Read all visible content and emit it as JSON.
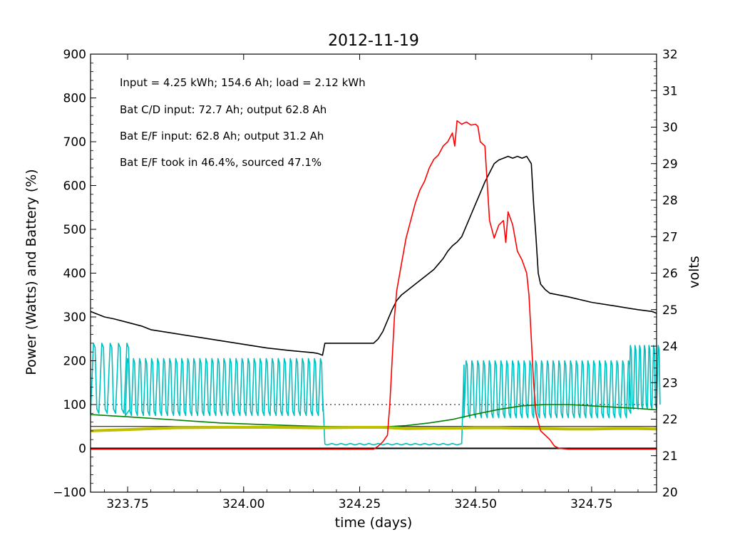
{
  "chart_data": {
    "type": "line",
    "title": "2012-11-19",
    "xlabel": "time (days)",
    "ylabel": "Power (Watts) and Battery (%)",
    "y2label": "volts",
    "xlim": [
      323.67,
      324.89
    ],
    "ylim": [
      -100,
      900
    ],
    "y2lim": [
      20,
      32
    ],
    "xticks": [
      323.75,
      324.0,
      324.25,
      324.5,
      324.75
    ],
    "xtick_labels": [
      "323.75",
      "324.00",
      "324.25",
      "324.50",
      "324.75"
    ],
    "yticks": [
      -100,
      0,
      100,
      200,
      300,
      400,
      500,
      600,
      700,
      800,
      900
    ],
    "ytick_labels": [
      "−100",
      "0",
      "100",
      "200",
      "300",
      "400",
      "500",
      "600",
      "700",
      "800",
      "900"
    ],
    "y2ticks": [
      20,
      21,
      22,
      23,
      24,
      25,
      26,
      27,
      28,
      29,
      30,
      31,
      32
    ],
    "y2tick_labels": [
      "20",
      "21",
      "22",
      "23",
      "24",
      "25",
      "26",
      "27",
      "28",
      "29",
      "30",
      "31",
      "32"
    ],
    "grid": false,
    "annotations": [
      "Input = 4.25 kWh; 154.6 Ah; load = 2.12 kWh",
      "Bat C/D input: 72.7 Ah; output 62.8 Ah",
      "Bat E/F input: 62.8 Ah; output 31.2 Ah",
      "Bat E/F took in 46.4%, sourced 47.1%"
    ],
    "reference_lines": [
      {
        "axis": "y",
        "value": 100,
        "style": "dotted",
        "color": "#000000"
      },
      {
        "axis": "y",
        "value": 50,
        "style": "solid",
        "color": "#000000"
      },
      {
        "axis": "y",
        "value": 0,
        "style": "solid",
        "color": "#000000"
      }
    ],
    "series": [
      {
        "color": "#ff0000",
        "axis": "left",
        "points": [
          [
            323.67,
            -2
          ],
          [
            324.25,
            -2
          ],
          [
            324.28,
            -2
          ],
          [
            324.29,
            5
          ],
          [
            324.3,
            15
          ],
          [
            324.31,
            30
          ],
          [
            324.315,
            100
          ],
          [
            324.32,
            200
          ],
          [
            324.325,
            300
          ],
          [
            324.33,
            360
          ],
          [
            324.34,
            420
          ],
          [
            324.35,
            480
          ],
          [
            324.36,
            520
          ],
          [
            324.37,
            560
          ],
          [
            324.38,
            590
          ],
          [
            324.39,
            610
          ],
          [
            324.4,
            640
          ],
          [
            324.41,
            660
          ],
          [
            324.42,
            670
          ],
          [
            324.43,
            690
          ],
          [
            324.44,
            700
          ],
          [
            324.45,
            720
          ],
          [
            324.455,
            690
          ],
          [
            324.46,
            748
          ],
          [
            324.47,
            740
          ],
          [
            324.48,
            745
          ],
          [
            324.49,
            738
          ],
          [
            324.5,
            740
          ],
          [
            324.505,
            735
          ],
          [
            324.51,
            700
          ],
          [
            324.52,
            690
          ],
          [
            324.53,
            520
          ],
          [
            324.54,
            480
          ],
          [
            324.55,
            510
          ],
          [
            324.56,
            520
          ],
          [
            324.565,
            470
          ],
          [
            324.57,
            540
          ],
          [
            324.58,
            510
          ],
          [
            324.59,
            450
          ],
          [
            324.6,
            430
          ],
          [
            324.61,
            400
          ],
          [
            324.615,
            350
          ],
          [
            324.62,
            250
          ],
          [
            324.625,
            150
          ],
          [
            324.63,
            80
          ],
          [
            324.64,
            40
          ],
          [
            324.65,
            30
          ],
          [
            324.66,
            20
          ],
          [
            324.67,
            5
          ],
          [
            324.68,
            0
          ],
          [
            324.7,
            -2
          ],
          [
            324.89,
            -2
          ]
        ]
      },
      {
        "color": "#000000",
        "axis": "right",
        "points": [
          [
            323.67,
            24.95
          ],
          [
            323.68,
            24.9
          ],
          [
            323.69,
            24.85
          ],
          [
            323.7,
            24.8
          ],
          [
            323.72,
            24.75
          ],
          [
            323.75,
            24.65
          ],
          [
            323.78,
            24.55
          ],
          [
            323.8,
            24.45
          ],
          [
            323.85,
            24.35
          ],
          [
            323.9,
            24.25
          ],
          [
            323.95,
            24.15
          ],
          [
            324.0,
            24.05
          ],
          [
            324.05,
            23.95
          ],
          [
            324.1,
            23.88
          ],
          [
            324.15,
            23.82
          ],
          [
            324.16,
            23.8
          ],
          [
            324.17,
            23.75
          ],
          [
            324.175,
            24.08
          ],
          [
            324.2,
            24.08
          ],
          [
            324.25,
            24.08
          ],
          [
            324.28,
            24.08
          ],
          [
            324.29,
            24.2
          ],
          [
            324.3,
            24.4
          ],
          [
            324.31,
            24.7
          ],
          [
            324.32,
            25.0
          ],
          [
            324.33,
            25.25
          ],
          [
            324.34,
            25.4
          ],
          [
            324.35,
            25.5
          ],
          [
            324.36,
            25.6
          ],
          [
            324.37,
            25.7
          ],
          [
            324.38,
            25.8
          ],
          [
            324.39,
            25.9
          ],
          [
            324.4,
            26.0
          ],
          [
            324.41,
            26.1
          ],
          [
            324.42,
            26.25
          ],
          [
            324.43,
            26.4
          ],
          [
            324.44,
            26.6
          ],
          [
            324.45,
            26.75
          ],
          [
            324.46,
            26.85
          ],
          [
            324.47,
            27.0
          ],
          [
            324.48,
            27.3
          ],
          [
            324.49,
            27.6
          ],
          [
            324.5,
            27.9
          ],
          [
            324.51,
            28.2
          ],
          [
            324.52,
            28.5
          ],
          [
            324.53,
            28.75
          ],
          [
            324.54,
            29.0
          ],
          [
            324.55,
            29.1
          ],
          [
            324.56,
            29.15
          ],
          [
            324.57,
            29.2
          ],
          [
            324.58,
            29.15
          ],
          [
            324.59,
            29.2
          ],
          [
            324.6,
            29.15
          ],
          [
            324.61,
            29.2
          ],
          [
            324.62,
            29.0
          ],
          [
            324.625,
            27.9
          ],
          [
            324.63,
            27.0
          ],
          [
            324.635,
            26.0
          ],
          [
            324.64,
            25.7
          ],
          [
            324.65,
            25.55
          ],
          [
            324.66,
            25.45
          ],
          [
            324.7,
            25.35
          ],
          [
            324.75,
            25.2
          ],
          [
            324.8,
            25.1
          ],
          [
            324.85,
            25.0
          ],
          [
            324.88,
            24.95
          ],
          [
            324.89,
            24.9
          ]
        ]
      },
      {
        "color": "#008000",
        "axis": "left",
        "points": [
          [
            323.67,
            77
          ],
          [
            323.75,
            72
          ],
          [
            323.85,
            65
          ],
          [
            323.95,
            58
          ],
          [
            324.05,
            54
          ],
          [
            324.17,
            50
          ],
          [
            324.25,
            49
          ],
          [
            324.3,
            49
          ],
          [
            324.35,
            52
          ],
          [
            324.4,
            58
          ],
          [
            324.45,
            66
          ],
          [
            324.5,
            78
          ],
          [
            324.55,
            89
          ],
          [
            324.6,
            97
          ],
          [
            324.65,
            100
          ],
          [
            324.7,
            100
          ],
          [
            324.75,
            97
          ],
          [
            324.8,
            94
          ],
          [
            324.85,
            91
          ],
          [
            324.89,
            88
          ]
        ]
      },
      {
        "color": "#bfbf00",
        "axis": "left",
        "points": [
          [
            323.67,
            40
          ],
          [
            323.75,
            43
          ],
          [
            323.85,
            47
          ],
          [
            323.95,
            48
          ],
          [
            324.05,
            48
          ],
          [
            324.15,
            47
          ],
          [
            324.17,
            47
          ],
          [
            324.25,
            48
          ],
          [
            324.3,
            48
          ],
          [
            324.35,
            45
          ],
          [
            324.4,
            46
          ],
          [
            324.45,
            46
          ],
          [
            324.5,
            47
          ],
          [
            324.55,
            47
          ],
          [
            324.6,
            46
          ],
          [
            324.65,
            45
          ],
          [
            324.7,
            44
          ],
          [
            324.75,
            44
          ],
          [
            324.8,
            45
          ],
          [
            324.85,
            45
          ],
          [
            324.89,
            44
          ]
        ]
      },
      {
        "color": "#00bfbf",
        "axis": "left",
        "points": []
      }
    ]
  }
}
